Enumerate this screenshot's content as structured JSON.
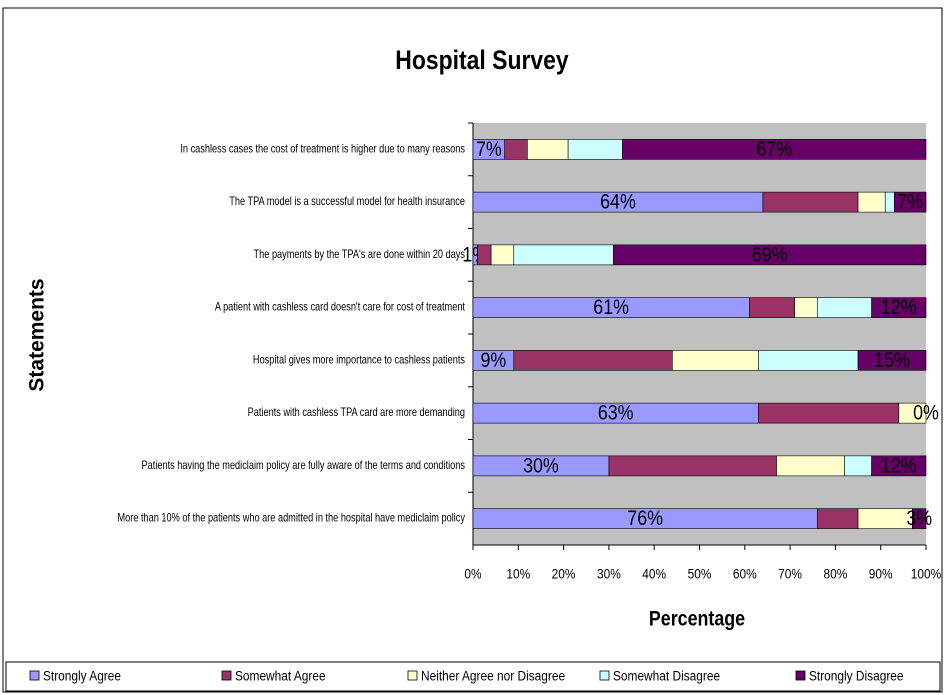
{
  "chart_data": {
    "type": "stacked_barh",
    "title": "Hospital Survey",
    "x_label": "Percentage",
    "y_label": "Statements",
    "categories": [
      "In cashless cases the cost of treatment is higher due to many reasons",
      "The TPA model is a successful model for health insurance",
      "The payments by the TPA's are done within 20 days",
      "A patient with cashless card doesn't care for cost of treatment",
      "Hospital gives more importance to cashless patients",
      "Patients with cashless TPA card are more demanding",
      "Patients having the mediclaim policy are fully aware of the terms and conditions",
      "More than 10% of the patients who are admitted in the hospital  have mediclaim policy"
    ],
    "series": [
      {
        "name": "Strongly Agree",
        "color": "#9999ff",
        "values": [
          7,
          64,
          1,
          61,
          9,
          63,
          30,
          76
        ],
        "value_labels": [
          "7%",
          "64%",
          "1%",
          "61%",
          "9%",
          "63%",
          "30%",
          "76%"
        ]
      },
      {
        "name": "Somewhat Agree",
        "color": "#993366",
        "values": [
          5,
          21,
          3,
          10,
          35,
          31,
          37,
          9
        ],
        "value_labels": [
          null,
          null,
          null,
          null,
          null,
          null,
          null,
          null
        ]
      },
      {
        "name": "Neither Agree nor Disagree",
        "color": "#ffffcc",
        "values": [
          9,
          6,
          5,
          5,
          19,
          6,
          15,
          12
        ],
        "value_labels": [
          null,
          null,
          null,
          null,
          null,
          null,
          null,
          null
        ]
      },
      {
        "name": "Somewhat Disagree",
        "color": "#ccffff",
        "values": [
          12,
          2,
          22,
          12,
          22,
          0,
          6,
          0
        ],
        "value_labels": [
          null,
          null,
          null,
          null,
          null,
          null,
          null,
          null
        ]
      },
      {
        "name": "Strongly Disagree",
        "color": "#660066",
        "values": [
          67,
          7,
          69,
          12,
          15,
          0,
          12,
          3
        ],
        "value_labels": [
          "67%",
          "7%",
          "69%",
          "12%",
          "15%",
          "0%",
          "12%",
          "3%"
        ]
      }
    ],
    "xlim": [
      0,
      100
    ],
    "xticks": [
      {
        "value": 0,
        "label": "0%"
      },
      {
        "value": 10,
        "label": "10%"
      },
      {
        "value": 20,
        "label": "20%"
      },
      {
        "value": 30,
        "label": "30%"
      },
      {
        "value": 40,
        "label": "40%"
      },
      {
        "value": 50,
        "label": "50%"
      },
      {
        "value": 60,
        "label": "60%"
      },
      {
        "value": 70,
        "label": "70%"
      },
      {
        "value": 80,
        "label": "80%"
      },
      {
        "value": 90,
        "label": "90%"
      },
      {
        "value": 100,
        "label": "100%"
      }
    ],
    "grid": false,
    "legend": "bottom",
    "plot_background": "#c0c0c0"
  }
}
